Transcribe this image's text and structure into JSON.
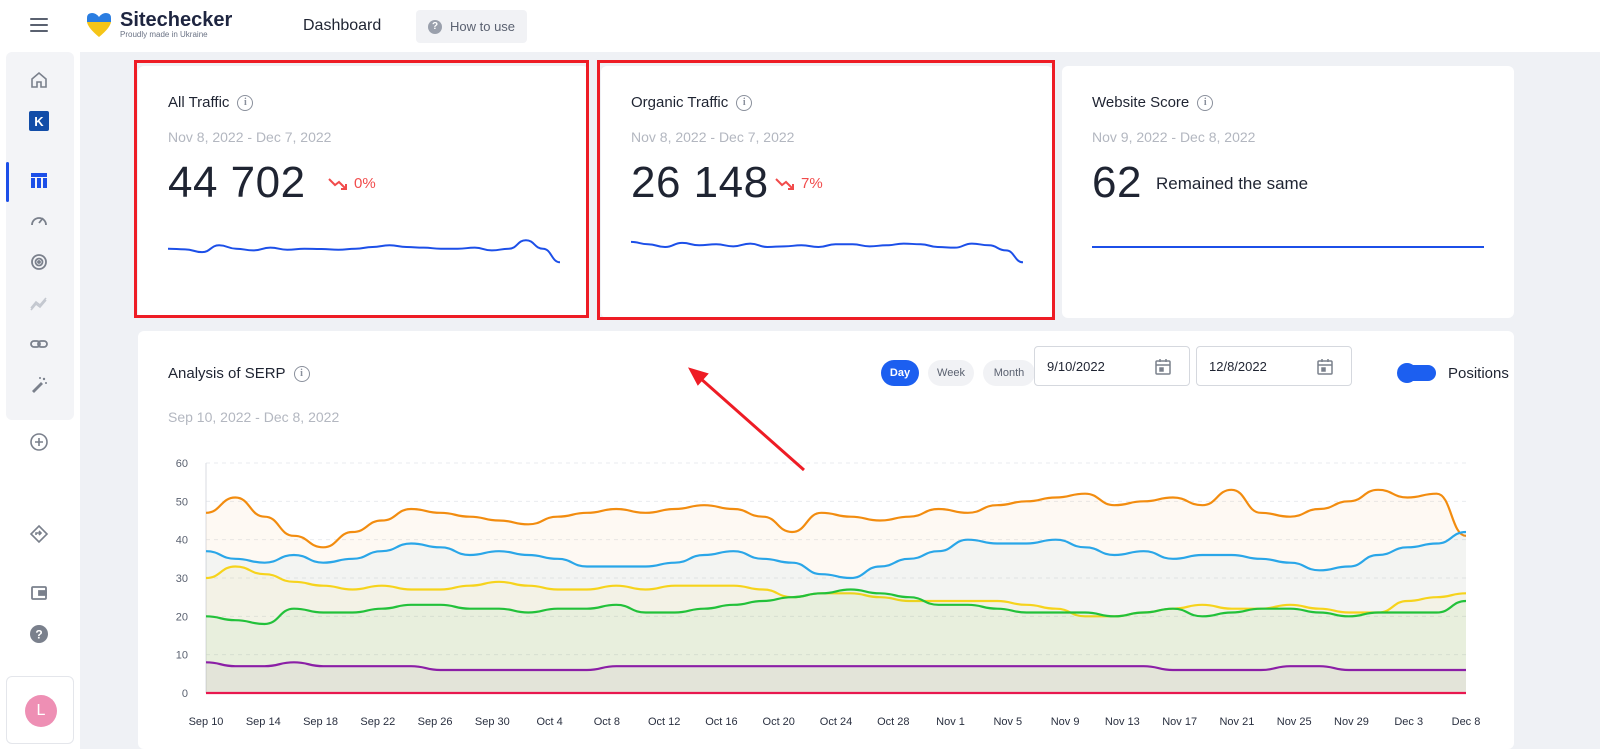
{
  "brand": {
    "name": "Sitechecker",
    "tagline": "Proudly made in Ukraine"
  },
  "nav": {
    "dashboard": "Dashboard",
    "how_to_use": "How to use"
  },
  "sidebar": {
    "items": [
      "home-icon",
      "project-k-icon",
      "dashboard-icon",
      "speedometer-icon",
      "target-icon",
      "trend-icon",
      "link-icon",
      "magic-wand-icon",
      "add-icon",
      "diamond-arrow-icon",
      "wallet-icon",
      "help-icon"
    ],
    "project_badge": "K",
    "avatar_letter": "L"
  },
  "cards": {
    "all_traffic": {
      "title": "All Traffic",
      "date": "Nov 8, 2022 - Dec 7, 2022",
      "value": "44 702",
      "delta": "0%"
    },
    "organic_traffic": {
      "title": "Organic Traffic",
      "date": "Nov 8, 2022 - Dec 7, 2022",
      "value": "26 148",
      "delta": "7%"
    },
    "website_score": {
      "title": "Website Score",
      "date": "Nov 9, 2022 - Dec 8, 2022",
      "value": "62",
      "status": "Remained the same"
    }
  },
  "serp": {
    "title": "Analysis of SERP",
    "date": "Sep 10, 2022 - Dec 8, 2022",
    "granularity": [
      "Day",
      "Week",
      "Month"
    ],
    "selected_granularity": "Day",
    "date_from": "9/10/2022",
    "date_to": "12/8/2022",
    "positions_toggle_label": "Positions",
    "positions_toggle_on": true
  },
  "colors": {
    "accent": "#1c5ff0",
    "negative": "#f14b4b",
    "highlight": "#ee1c25"
  },
  "chart_data": {
    "type": "line",
    "title": "Analysis of SERP",
    "ylim": [
      0,
      60
    ],
    "yticks": [
      0,
      10,
      20,
      30,
      40,
      50,
      60
    ],
    "x_tick_labels": [
      "Sep 10",
      "Sep 14",
      "Sep 18",
      "Sep 22",
      "Sep 26",
      "Sep 30",
      "Oct 4",
      "Oct 8",
      "Oct 12",
      "Oct 16",
      "Oct 20",
      "Oct 24",
      "Oct 28",
      "Nov 1",
      "Nov 5",
      "Nov 9",
      "Nov 13",
      "Nov 17",
      "Nov 21",
      "Nov 25",
      "Nov 29",
      "Dec 3",
      "Dec 8"
    ],
    "grid": true,
    "series": [
      {
        "color": "#f28c0f",
        "values": [
          47,
          51,
          46,
          41,
          38,
          42,
          45,
          48,
          47,
          46,
          45,
          44,
          46,
          47,
          48,
          47,
          48,
          49,
          48,
          46,
          42,
          47,
          46,
          45,
          46,
          48,
          47,
          49,
          50,
          51,
          52,
          49,
          50,
          51,
          49,
          53,
          47,
          46,
          48,
          50,
          53,
          51,
          52,
          41
        ]
      },
      {
        "color": "#2aa6e8",
        "values": [
          37,
          35,
          34,
          36,
          34,
          35,
          37,
          39,
          38,
          36,
          37,
          36,
          35,
          33,
          33,
          33,
          34,
          36,
          37,
          35,
          34,
          31,
          30,
          33,
          35,
          37,
          40,
          39,
          39,
          40,
          38,
          36,
          37,
          35,
          36,
          36,
          35,
          34,
          32,
          33,
          36,
          38,
          39,
          42
        ]
      },
      {
        "color": "#f6d31c",
        "values": [
          30,
          33,
          31,
          29,
          28,
          27,
          28,
          27,
          27,
          28,
          29,
          28,
          27,
          27,
          28,
          27,
          28,
          28,
          28,
          27,
          25,
          26,
          26,
          25,
          24,
          24,
          24,
          24,
          23,
          22,
          20,
          20,
          21,
          22,
          23,
          22,
          22,
          23,
          22,
          21,
          21,
          24,
          25,
          26
        ]
      },
      {
        "color": "#22c13a",
        "values": [
          20,
          19,
          18,
          22,
          21,
          21,
          22,
          23,
          23,
          22,
          22,
          21,
          22,
          22,
          23,
          21,
          21,
          22,
          23,
          24,
          25,
          26,
          27,
          26,
          25,
          23,
          23,
          22,
          21,
          21,
          21,
          20,
          21,
          22,
          20,
          21,
          22,
          22,
          21,
          20,
          21,
          21,
          21,
          24
        ]
      },
      {
        "color": "#8b1fa6",
        "values": [
          8,
          7,
          7,
          8,
          7,
          7,
          7,
          7,
          6,
          6,
          6,
          6,
          6,
          6,
          7,
          7,
          7,
          7,
          7,
          7,
          7,
          7,
          7,
          7,
          7,
          7,
          7,
          7,
          7,
          7,
          7,
          7,
          7,
          6,
          6,
          6,
          6,
          7,
          7,
          6,
          6,
          6,
          6,
          6
        ]
      },
      {
        "color": "#e8174f",
        "values": [
          0,
          0,
          0,
          0,
          0,
          0,
          0,
          0,
          0,
          0,
          0,
          0,
          0,
          0,
          0,
          0,
          0,
          0,
          0,
          0,
          0,
          0,
          0,
          0,
          0,
          0,
          0,
          0,
          0,
          0,
          0,
          0,
          0,
          0,
          0,
          0,
          0,
          0,
          0,
          0,
          0,
          0,
          0,
          0
        ]
      }
    ]
  },
  "sparklines": {
    "all_traffic": [
      0.55,
      0.57,
      0.65,
      0.45,
      0.55,
      0.6,
      0.52,
      0.58,
      0.55,
      0.56,
      0.58,
      0.55,
      0.5,
      0.45,
      0.5,
      0.52,
      0.55,
      0.55,
      0.52,
      0.6,
      0.55,
      0.3,
      0.55,
      0.95
    ],
    "organic_traffic": [
      0.35,
      0.42,
      0.5,
      0.38,
      0.45,
      0.42,
      0.48,
      0.4,
      0.5,
      0.48,
      0.45,
      0.5,
      0.42,
      0.42,
      0.48,
      0.45,
      0.4,
      0.42,
      0.5,
      0.52,
      0.4,
      0.45,
      0.6,
      0.95
    ],
    "website_score": [
      0.5,
      0.5,
      0.5,
      0.5,
      0.5,
      0.5,
      0.5,
      0.5,
      0.5,
      0.5,
      0.5,
      0.5,
      0.5,
      0.5,
      0.5,
      0.5,
      0.5,
      0.5,
      0.5,
      0.5,
      0.5,
      0.5,
      0.5,
      0.5
    ]
  }
}
